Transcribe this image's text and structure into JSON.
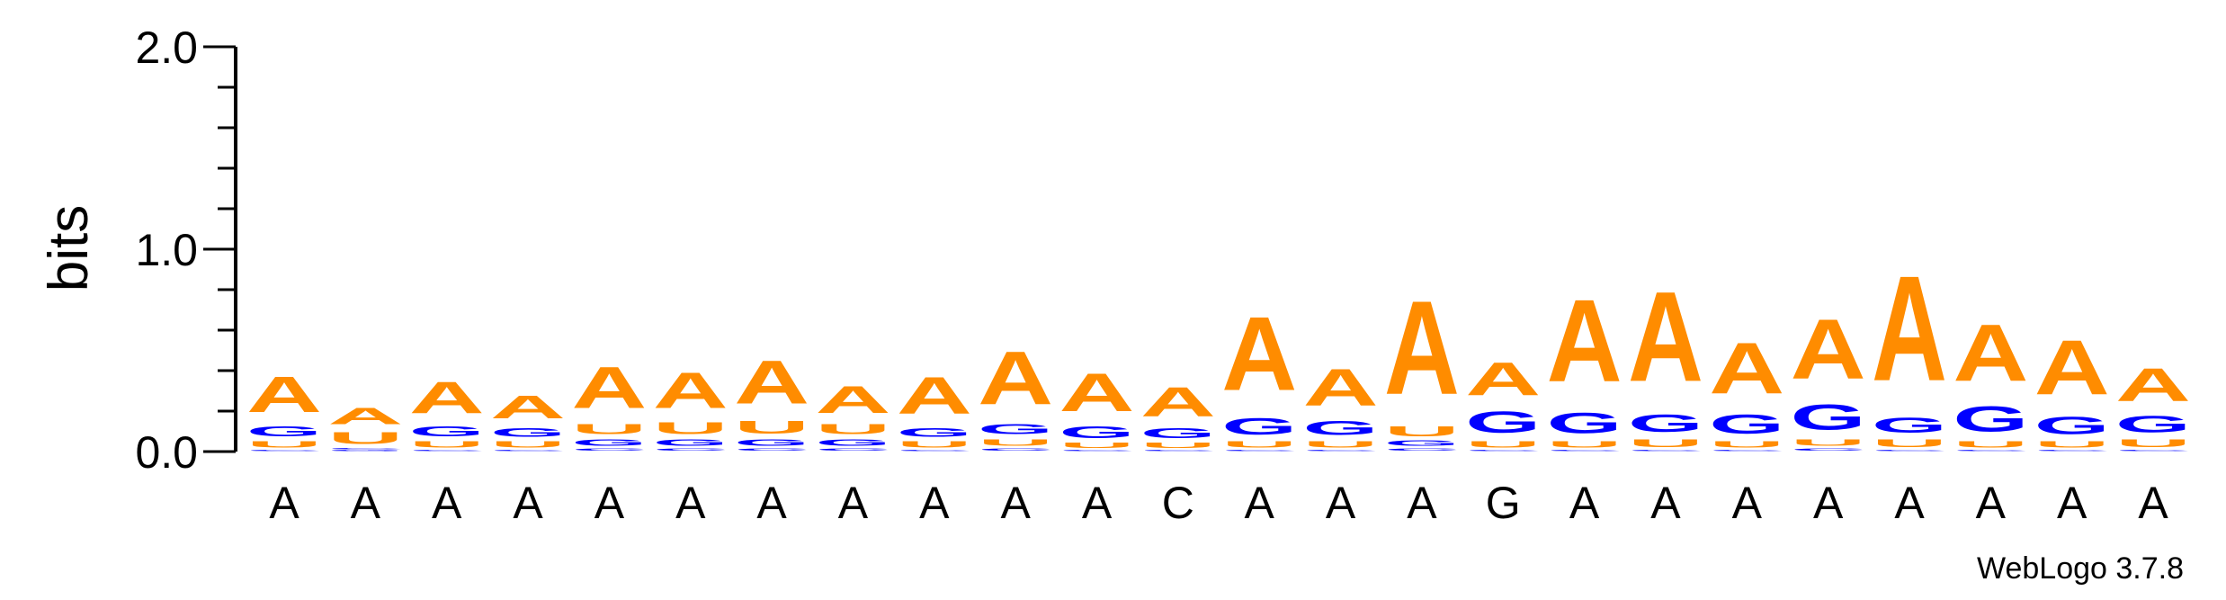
{
  "chart_data": {
    "type": "sequence-logo",
    "ylabel": "bits",
    "ylim": [
      0,
      2.0
    ],
    "yticks": [
      "0.0",
      "1.0",
      "2.0"
    ],
    "credit": "WebLogo 3.7.8",
    "colors": {
      "A": "#ff8c00",
      "U": "#ff8c00",
      "G": "#0000ff",
      "C": "#0000ff"
    },
    "positions": [
      {
        "label": "A",
        "stack": [
          {
            "b": "C",
            "h": 0.01
          },
          {
            "b": "U",
            "h": 0.05
          },
          {
            "b": "G",
            "h": 0.08
          },
          {
            "b": "A",
            "h": 0.28
          }
        ]
      },
      {
        "label": "A",
        "stack": [
          {
            "b": "G",
            "h": 0.01
          },
          {
            "b": "C",
            "h": 0.01
          },
          {
            "b": "U",
            "h": 0.09
          },
          {
            "b": "A",
            "h": 0.13
          }
        ]
      },
      {
        "label": "A",
        "stack": [
          {
            "b": "C",
            "h": 0.01
          },
          {
            "b": "U",
            "h": 0.05
          },
          {
            "b": "G",
            "h": 0.08
          },
          {
            "b": "A",
            "h": 0.25
          }
        ]
      },
      {
        "label": "A",
        "stack": [
          {
            "b": "C",
            "h": 0.01
          },
          {
            "b": "U",
            "h": 0.05
          },
          {
            "b": "G",
            "h": 0.07
          },
          {
            "b": "A",
            "h": 0.18
          }
        ]
      },
      {
        "label": "A",
        "stack": [
          {
            "b": "C",
            "h": 0.02
          },
          {
            "b": "G",
            "h": 0.05
          },
          {
            "b": "U",
            "h": 0.08
          },
          {
            "b": "A",
            "h": 0.33
          }
        ]
      },
      {
        "label": "A",
        "stack": [
          {
            "b": "C",
            "h": 0.02
          },
          {
            "b": "G",
            "h": 0.05
          },
          {
            "b": "U",
            "h": 0.09
          },
          {
            "b": "A",
            "h": 0.28
          }
        ]
      },
      {
        "label": "A",
        "stack": [
          {
            "b": "C",
            "h": 0.02
          },
          {
            "b": "G",
            "h": 0.05
          },
          {
            "b": "U",
            "h": 0.1
          },
          {
            "b": "A",
            "h": 0.34
          }
        ]
      },
      {
        "label": "A",
        "stack": [
          {
            "b": "C",
            "h": 0.02
          },
          {
            "b": "G",
            "h": 0.05
          },
          {
            "b": "U",
            "h": 0.08
          },
          {
            "b": "A",
            "h": 0.21
          }
        ]
      },
      {
        "label": "A",
        "stack": [
          {
            "b": "C",
            "h": 0.01
          },
          {
            "b": "U",
            "h": 0.05
          },
          {
            "b": "G",
            "h": 0.07
          },
          {
            "b": "A",
            "h": 0.29
          }
        ]
      },
      {
        "label": "A",
        "stack": [
          {
            "b": "C",
            "h": 0.02
          },
          {
            "b": "U",
            "h": 0.05
          },
          {
            "b": "G",
            "h": 0.08
          },
          {
            "b": "A",
            "h": 0.42
          }
        ]
      },
      {
        "label": "A",
        "stack": [
          {
            "b": "C",
            "h": 0.01
          },
          {
            "b": "U",
            "h": 0.04
          },
          {
            "b": "G",
            "h": 0.09
          },
          {
            "b": "A",
            "h": 0.3
          }
        ]
      },
      {
        "label": "C",
        "stack": [
          {
            "b": "C",
            "h": 0.01
          },
          {
            "b": "U",
            "h": 0.04
          },
          {
            "b": "G",
            "h": 0.08
          },
          {
            "b": "A",
            "h": 0.23
          }
        ]
      },
      {
        "label": "A",
        "stack": [
          {
            "b": "C",
            "h": 0.01
          },
          {
            "b": "U",
            "h": 0.05
          },
          {
            "b": "G",
            "h": 0.13
          },
          {
            "b": "A",
            "h": 0.58
          }
        ]
      },
      {
        "label": "A",
        "stack": [
          {
            "b": "C",
            "h": 0.01
          },
          {
            "b": "U",
            "h": 0.05
          },
          {
            "b": "G",
            "h": 0.11
          },
          {
            "b": "A",
            "h": 0.29
          }
        ]
      },
      {
        "label": "A",
        "stack": [
          {
            "b": "C",
            "h": 0.02
          },
          {
            "b": "G",
            "h": 0.04
          },
          {
            "b": "U",
            "h": 0.08
          },
          {
            "b": "A",
            "h": 0.74
          }
        ]
      },
      {
        "label": "G",
        "stack": [
          {
            "b": "C",
            "h": 0.01
          },
          {
            "b": "U",
            "h": 0.05
          },
          {
            "b": "G",
            "h": 0.17
          },
          {
            "b": "A",
            "h": 0.26
          }
        ]
      },
      {
        "label": "A",
        "stack": [
          {
            "b": "C",
            "h": 0.01
          },
          {
            "b": "U",
            "h": 0.05
          },
          {
            "b": "G",
            "h": 0.16
          },
          {
            "b": "A",
            "h": 0.65
          }
        ]
      },
      {
        "label": "A",
        "stack": [
          {
            "b": "C",
            "h": 0.01
          },
          {
            "b": "U",
            "h": 0.06
          },
          {
            "b": "G",
            "h": 0.14
          },
          {
            "b": "A",
            "h": 0.71
          }
        ]
      },
      {
        "label": "A",
        "stack": [
          {
            "b": "C",
            "h": 0.01
          },
          {
            "b": "U",
            "h": 0.05
          },
          {
            "b": "G",
            "h": 0.15
          },
          {
            "b": "A",
            "h": 0.4
          }
        ]
      },
      {
        "label": "A",
        "stack": [
          {
            "b": "C",
            "h": 0.02
          },
          {
            "b": "U",
            "h": 0.05
          },
          {
            "b": "G",
            "h": 0.2
          },
          {
            "b": "A",
            "h": 0.47
          }
        ]
      },
      {
        "label": "A",
        "stack": [
          {
            "b": "C",
            "h": 0.01
          },
          {
            "b": "U",
            "h": 0.06
          },
          {
            "b": "G",
            "h": 0.12
          },
          {
            "b": "A",
            "h": 0.83
          }
        ]
      },
      {
        "label": "A",
        "stack": [
          {
            "b": "C",
            "h": 0.01
          },
          {
            "b": "U",
            "h": 0.05
          },
          {
            "b": "G",
            "h": 0.2
          },
          {
            "b": "A",
            "h": 0.45
          }
        ]
      },
      {
        "label": "A",
        "stack": [
          {
            "b": "C",
            "h": 0.01
          },
          {
            "b": "U",
            "h": 0.05
          },
          {
            "b": "G",
            "h": 0.14
          },
          {
            "b": "A",
            "h": 0.43
          }
        ]
      },
      {
        "label": "A",
        "stack": [
          {
            "b": "C",
            "h": 0.01
          },
          {
            "b": "U",
            "h": 0.06
          },
          {
            "b": "G",
            "h": 0.13
          },
          {
            "b": "A",
            "h": 0.26
          }
        ]
      }
    ]
  }
}
